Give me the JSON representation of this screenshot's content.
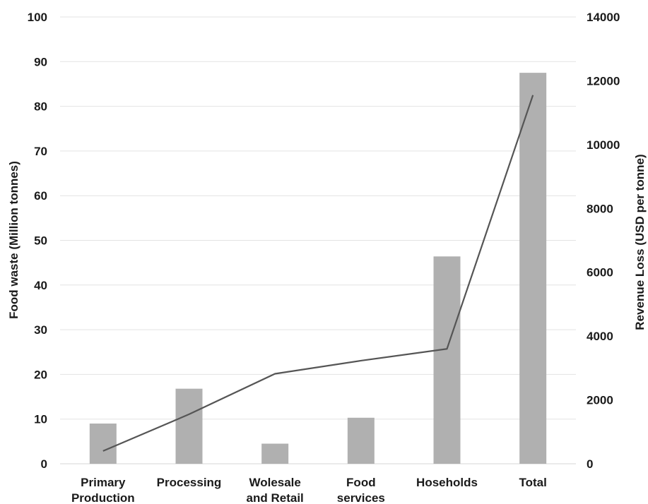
{
  "chart_data": {
    "type": "bar",
    "categories": [
      [
        "Primary",
        "Production"
      ],
      [
        "Processing"
      ],
      [
        "Wolesale",
        "and Retail"
      ],
      [
        "Food",
        "services"
      ],
      [
        "Hoseholds"
      ],
      [
        "Total"
      ]
    ],
    "series": [
      {
        "type": "bar",
        "axis": "left",
        "color": "#b0b0b0",
        "values": [
          9,
          16.8,
          4.5,
          10.3,
          46.4,
          87.5
        ]
      },
      {
        "type": "line",
        "axis": "right",
        "color": "#555555",
        "values": [
          400,
          1550,
          2820,
          3230,
          3600,
          11550
        ]
      }
    ],
    "ylabel": "Food waste (Million tonnes)",
    "y2label": "Revenue Loss (USD per tonne)",
    "ylim": [
      0,
      100
    ],
    "y2lim": [
      0,
      14000
    ],
    "yticks": [
      "0",
      "10",
      "20",
      "30",
      "40",
      "50",
      "60",
      "70",
      "80",
      "90",
      "100"
    ],
    "y2ticks": [
      "0",
      "2000",
      "4000",
      "6000",
      "8000",
      "10000",
      "12000",
      "14000"
    ],
    "grid": true,
    "legend": "none"
  }
}
